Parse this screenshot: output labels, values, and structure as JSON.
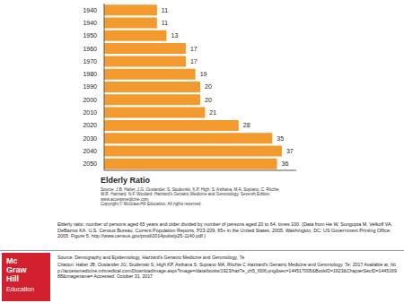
{
  "chart_data": {
    "type": "bar",
    "orientation": "horizontal",
    "x_label": "Elderly Ratio",
    "categories": [
      "1940",
      "1940",
      "1950",
      "1960",
      "1970",
      "1980",
      "1990",
      "2000",
      "2010",
      "2020",
      "2030",
      "2040",
      "2050"
    ],
    "values": [
      11,
      11,
      13,
      17,
      17,
      19,
      20,
      20,
      21,
      28,
      35,
      37,
      36
    ],
    "color": "#f39a2e",
    "xlim": [
      0,
      40
    ],
    "data_labels": true,
    "tick_labels": "y",
    "grid": false
  },
  "figure_source": "Source: J.B. Halter, J.G. Ouslander, S. Studenski, K.P. High, S. Asthana, M.A. Supiano, C. Ritchie, W.R. Hazzard, N.F. Woolard: Hazzard's Geriatric Medicine and Gerontology, Seventh Edition, www.accessmedicine.com",
  "figure_copyright": "Copyright © McGraw-Hill Education. All rights reserved.",
  "caption": "Elderly ratio: number of persons aged 65 years and older divided by number of persons aged 20 to 64, times 100. (Data from He W, Sungupta M, Velkoff VA, DeBarros KA. U.S. Census Bureau, Current Population Reports, P23-209, 65+ in the United States, 2005. Washington, DC: US Government Printing Office; 2005. Figure 5. http://www.census.gov/prod/2014pubs/p25-1140.pdf.)",
  "footer": {
    "source": "Source: Demography and Epidemiology, Hazzard's Geriatric Medicine and Gerontology, 7e",
    "citation": "Citation: Halter JB, Ouslander JG, Studenski S, High KP, Asthana S, Supiano MA, Ritchie C  Hazzard's Geriatric Medicine and Gerontology, 7e; 2017 Available at: http://accessmedicine.mhmedical.com/DownloadImage.aspx?image=/data/books/1923/haz7e_ch5_f006.png&sec=144517005&BookID=1923&ChapterSecID=144516988&imagename= Accessed: October 31, 2017"
  },
  "logo": [
    "Mc",
    "Graw",
    "Hill",
    "Education"
  ]
}
